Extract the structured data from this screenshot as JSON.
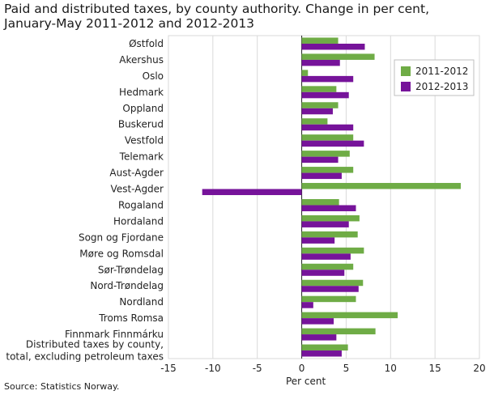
{
  "title_line1": "Paid and distributed taxes, by county authority. Change in per cent,",
  "title_line2": "January-May 2011-2012 and 2012-2013",
  "source": "Source: Statistics Norway.",
  "chart_data": {
    "type": "bar",
    "orientation": "horizontal",
    "categories": [
      [
        "Østfold"
      ],
      [
        "Akershus"
      ],
      [
        "Oslo"
      ],
      [
        "Hedmark"
      ],
      [
        "Oppland"
      ],
      [
        "Buskerud"
      ],
      [
        "Vestfold"
      ],
      [
        "Telemark"
      ],
      [
        "Aust-Agder"
      ],
      [
        "Vest-Agder"
      ],
      [
        "Rogaland"
      ],
      [
        "Hordaland"
      ],
      [
        "Sogn og Fjordane"
      ],
      [
        "Møre og Romsdal"
      ],
      [
        "Sør-Trøndelag"
      ],
      [
        "Nord-Trøndelag"
      ],
      [
        "Nordland"
      ],
      [
        "Troms Romsa"
      ],
      [
        "Finnmark Finnmárku"
      ],
      [
        "Distributed taxes by county,",
        "total, excluding petroleum taxes"
      ]
    ],
    "series": [
      {
        "name": "2011-2012",
        "color": "#6fac46",
        "values": [
          4.1,
          8.2,
          0.7,
          3.9,
          4.1,
          2.9,
          5.8,
          5.4,
          5.8,
          17.9,
          4.2,
          6.5,
          6.3,
          7.0,
          5.8,
          6.9,
          6.1,
          10.8,
          8.3,
          5.2
        ]
      },
      {
        "name": "2012-2013",
        "color": "#76139a",
        "values": [
          7.1,
          4.3,
          5.8,
          5.3,
          3.5,
          5.8,
          7.0,
          4.1,
          4.5,
          -11.2,
          6.1,
          5.3,
          3.7,
          5.5,
          4.8,
          6.4,
          1.3,
          3.6,
          3.9,
          4.5
        ]
      }
    ],
    "xlabel": "Per cent",
    "xlim": [
      -15,
      20
    ],
    "xticks": [
      -15,
      -10,
      -5,
      0,
      5,
      10,
      15,
      20
    ],
    "grid": true,
    "legend_position": "top-right"
  }
}
